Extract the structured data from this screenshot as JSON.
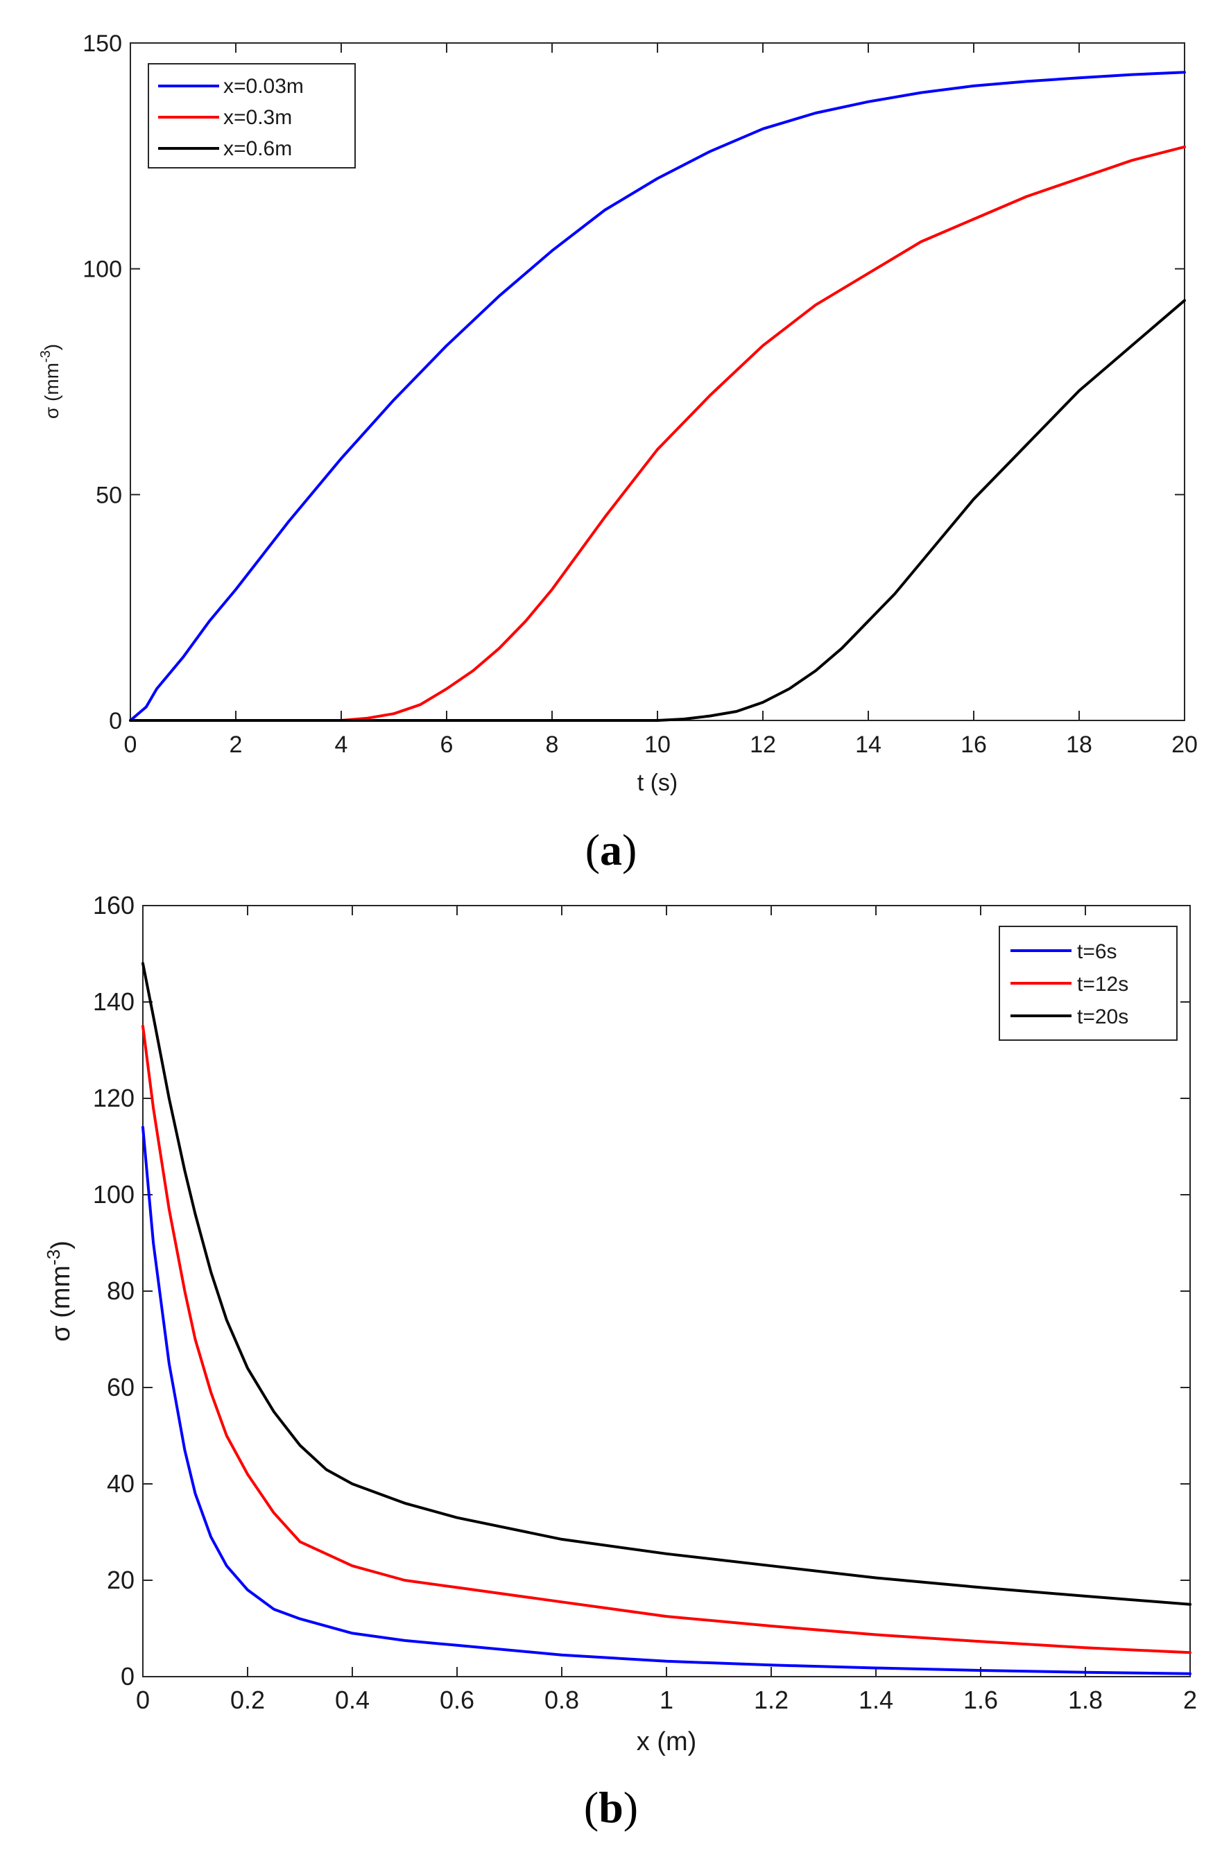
{
  "chart_data": [
    {
      "type": "line",
      "panel_label_open": "(",
      "panel_label_letter": "a",
      "panel_label_close": ")",
      "xlabel": "t (s)",
      "ylabel_main": "σ (mm",
      "ylabel_sup": "-3",
      "ylabel_close": ")",
      "xlim": [
        0,
        20
      ],
      "ylim": [
        0,
        150
      ],
      "xticks": [
        0,
        2,
        4,
        6,
        8,
        10,
        12,
        14,
        16,
        18,
        20
      ],
      "yticks": [
        0,
        50,
        100,
        150
      ],
      "legend_position": "top-left",
      "series": [
        {
          "name": "x=0.03m",
          "color": "#0000ff",
          "x": [
            0,
            0.3,
            0.5,
            1,
            1.5,
            2,
            3,
            4,
            5,
            6,
            7,
            8,
            9,
            10,
            11,
            12,
            13,
            14,
            15,
            16,
            17,
            18,
            19,
            20
          ],
          "y": [
            0,
            3,
            7,
            14,
            22,
            29,
            44,
            58,
            71,
            83,
            94,
            104,
            113,
            120,
            126,
            131,
            134.5,
            137,
            139,
            140.5,
            141.5,
            142.3,
            143,
            143.5
          ]
        },
        {
          "name": "x=0.3m",
          "color": "#ff0000",
          "x": [
            0,
            4,
            4.5,
            5,
            5.5,
            6,
            6.5,
            7,
            7.5,
            8,
            9,
            10,
            11,
            12,
            13,
            14,
            15,
            16,
            17,
            18,
            19,
            20
          ],
          "y": [
            0,
            0,
            0.5,
            1.5,
            3.5,
            7,
            11,
            16,
            22,
            29,
            45,
            60,
            72,
            83,
            92,
            99,
            106,
            111,
            116,
            120,
            124,
            127
          ]
        },
        {
          "name": "x=0.6m",
          "color": "#000000",
          "x": [
            0,
            10,
            10.5,
            11,
            11.5,
            12,
            12.5,
            13,
            13.5,
            14,
            14.5,
            15,
            15.5,
            16,
            16.5,
            17,
            17.5,
            18,
            18.5,
            19,
            19.5,
            20
          ],
          "y": [
            0,
            0,
            0.3,
            1,
            2,
            4,
            7,
            11,
            16,
            22,
            28,
            35,
            42,
            49,
            55,
            61,
            67,
            73,
            78,
            83,
            88,
            93
          ]
        }
      ]
    },
    {
      "type": "line",
      "panel_label_open": "(",
      "panel_label_letter": "b",
      "panel_label_close": ")",
      "xlabel": "x (m)",
      "ylabel_main": "σ (mm",
      "ylabel_sup": "-3",
      "ylabel_close": ")",
      "xlim": [
        0,
        2
      ],
      "ylim": [
        0,
        160
      ],
      "xticks": [
        0,
        0.2,
        0.4,
        0.6,
        0.8,
        1,
        1.2,
        1.4,
        1.6,
        1.8,
        2
      ],
      "yticks": [
        0,
        20,
        40,
        60,
        80,
        100,
        120,
        140,
        160
      ],
      "legend_position": "top-right",
      "series": [
        {
          "name": "t=6s",
          "color": "#0000ff",
          "x": [
            0,
            0.02,
            0.05,
            0.08,
            0.1,
            0.13,
            0.16,
            0.2,
            0.25,
            0.3,
            0.4,
            0.5,
            0.6,
            0.8,
            1,
            1.2,
            1.4,
            1.6,
            1.8,
            2
          ],
          "y": [
            114,
            90,
            65,
            47,
            38,
            29,
            23,
            18,
            14,
            12,
            9,
            7.5,
            6.5,
            4.5,
            3.2,
            2.4,
            1.8,
            1.3,
            0.9,
            0.6
          ]
        },
        {
          "name": "t=12s",
          "color": "#ff0000",
          "x": [
            0,
            0.02,
            0.05,
            0.08,
            0.1,
            0.13,
            0.16,
            0.2,
            0.25,
            0.3,
            0.4,
            0.5,
            0.6,
            0.8,
            1,
            1.2,
            1.4,
            1.6,
            1.8,
            2
          ],
          "y": [
            135,
            118,
            97,
            80,
            70,
            59,
            50,
            42,
            34,
            28,
            23,
            20,
            18.5,
            15.5,
            12.5,
            10.5,
            8.7,
            7.3,
            6,
            5
          ]
        },
        {
          "name": "t=20s",
          "color": "#000000",
          "x": [
            0,
            0.02,
            0.05,
            0.08,
            0.1,
            0.13,
            0.16,
            0.2,
            0.25,
            0.3,
            0.35,
            0.4,
            0.5,
            0.6,
            0.8,
            1,
            1.2,
            1.4,
            1.6,
            1.8,
            2
          ],
          "y": [
            148,
            137,
            120,
            105,
            96,
            84,
            74,
            64,
            55,
            48,
            43,
            40,
            36,
            33,
            28.5,
            25.5,
            23,
            20.5,
            18.5,
            16.7,
            15
          ]
        }
      ]
    }
  ]
}
